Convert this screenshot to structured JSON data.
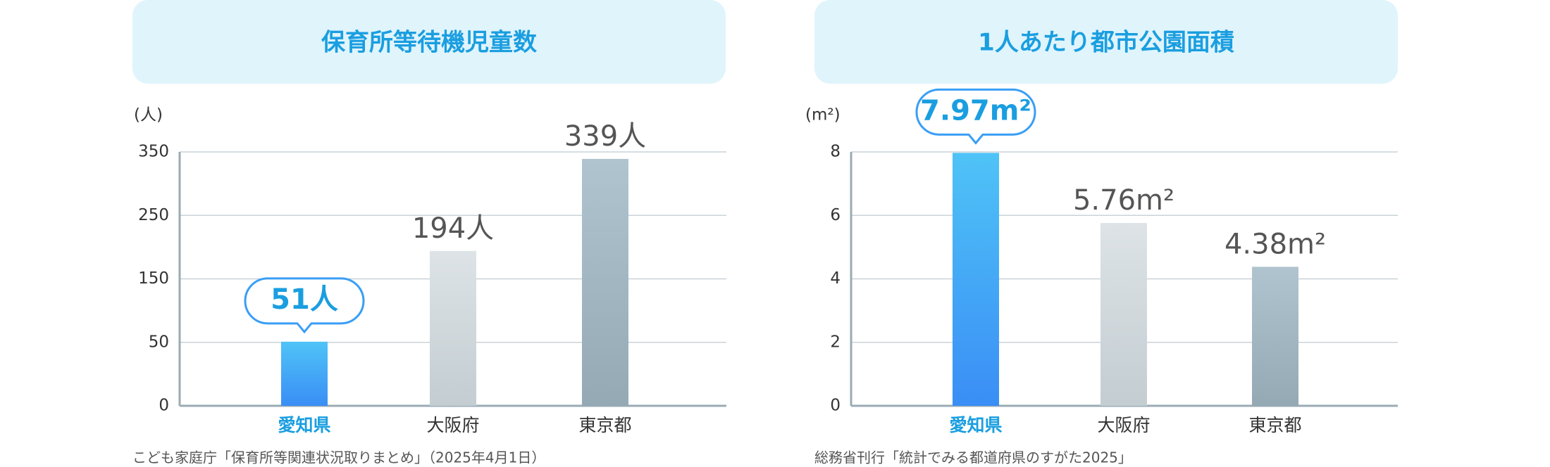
{
  "chart_data": [
    {
      "type": "bar",
      "title": "保育所等待機児童数",
      "y_label": "(人)",
      "categories": [
        "愛知県",
        "大阪府",
        "東京都"
      ],
      "values": [
        51,
        194,
        339
      ],
      "value_labels": [
        "51人",
        "194人",
        "339人"
      ],
      "ylim": [
        0,
        350
      ],
      "yticks": [
        0,
        50,
        150,
        250,
        350
      ],
      "grid": true,
      "highlight": 0,
      "colors": [
        "#3a9ef5",
        "#cfd8dc",
        "#a3b8c3"
      ],
      "source": "こども家庭庁「保育所等関連状況取りまとめ」（2025年4月1日）"
    },
    {
      "type": "bar",
      "title": "1人あたり都市公園面積",
      "y_label": "(m²)",
      "categories": [
        "愛知県",
        "大阪府",
        "東京都"
      ],
      "values": [
        7.97,
        5.76,
        4.38
      ],
      "value_labels": [
        "7.97m²",
        "5.76m²",
        "4.38m²"
      ],
      "ylim": [
        0,
        8
      ],
      "yticks": [
        0,
        2,
        4,
        6,
        8
      ],
      "grid": true,
      "highlight": 0,
      "colors": [
        "#3a9ef5",
        "#cfd8dc",
        "#a3b8c3"
      ],
      "source": "総務省刊行「統計でみる都道府県のすがた2025」"
    }
  ]
}
